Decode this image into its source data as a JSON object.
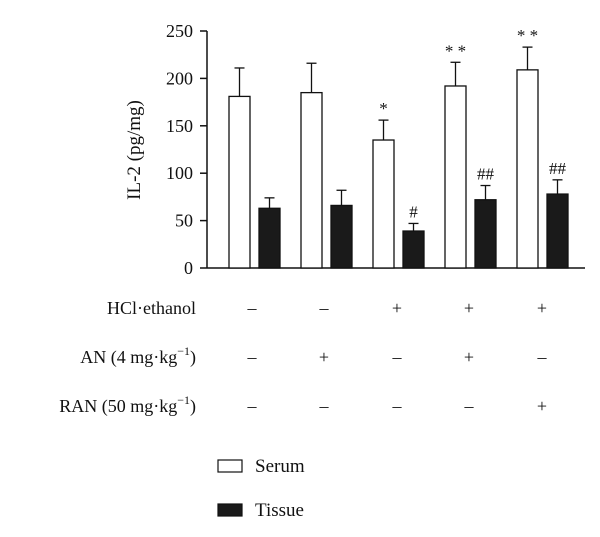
{
  "chart_data": {
    "type": "bar",
    "ylabel": "IL-2 (pg/mg)",
    "ylim": [
      0,
      250
    ],
    "yticks": [
      "0",
      "50",
      "100",
      "150",
      "200",
      "250"
    ],
    "group_count": 5,
    "series": [
      {
        "name": "Serum",
        "color": "#ffffff",
        "values": [
          181,
          185,
          135,
          192,
          209
        ],
        "errors": [
          30,
          31,
          21,
          25,
          24
        ],
        "annotations": [
          "",
          "",
          "*",
          "* *",
          "* *"
        ]
      },
      {
        "name": "Tissue",
        "color": "#1a1a1a",
        "values": [
          63,
          66,
          39,
          72,
          78
        ],
        "errors": [
          11,
          16,
          8,
          15,
          15
        ],
        "annotations": [
          "",
          "",
          "#",
          "##",
          "##"
        ]
      }
    ],
    "treatment_rows": [
      {
        "label": "HCl·ethanol",
        "signs": [
          "–",
          "–",
          "+",
          "+",
          "+"
        ]
      },
      {
        "label_main": "AN (4 mg·kg",
        "label_sup": "−1",
        "label_end": ")",
        "signs": [
          "–",
          "+",
          "–",
          "+",
          "–"
        ]
      },
      {
        "label_main": "RAN (50 mg·kg",
        "label_sup": "−1",
        "label_end": ")",
        "signs": [
          "–",
          "–",
          "–",
          "–",
          "+"
        ]
      }
    ]
  }
}
